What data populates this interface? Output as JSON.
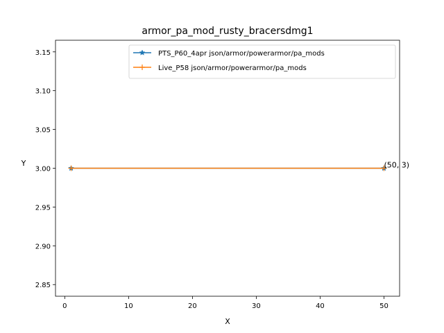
{
  "chart_data": {
    "type": "line",
    "title": "armor_pa_mod_rusty_bracersdmg1",
    "xlabel": "X",
    "ylabel": "Y",
    "xlim": [
      -1.45,
      52.45
    ],
    "ylim": [
      2.835,
      3.165
    ],
    "x_ticks": [
      0,
      10,
      20,
      30,
      40,
      50
    ],
    "y_ticks": [
      2.85,
      2.9,
      2.95,
      3.0,
      3.05,
      3.1,
      3.15
    ],
    "y_tick_labels": [
      "2.85",
      "2.90",
      "2.95",
      "3.00",
      "3.05",
      "3.10",
      "3.15"
    ],
    "grid": false,
    "legend_position": "upper right",
    "series": [
      {
        "name": "PTS_P60_4apr json/armor/powerarmor/pa_mods",
        "color": "#1f77b4",
        "marker": "star",
        "x": [
          1,
          50
        ],
        "y": [
          3,
          3
        ]
      },
      {
        "name": "Live_P58 json/armor/powerarmor/pa_mods",
        "color": "#ff7f0e",
        "marker": "plus",
        "x": [
          1,
          50
        ],
        "y": [
          3,
          3
        ]
      }
    ],
    "annotations": [
      {
        "text": "(50, 3)",
        "x": 50,
        "y": 3
      }
    ]
  }
}
